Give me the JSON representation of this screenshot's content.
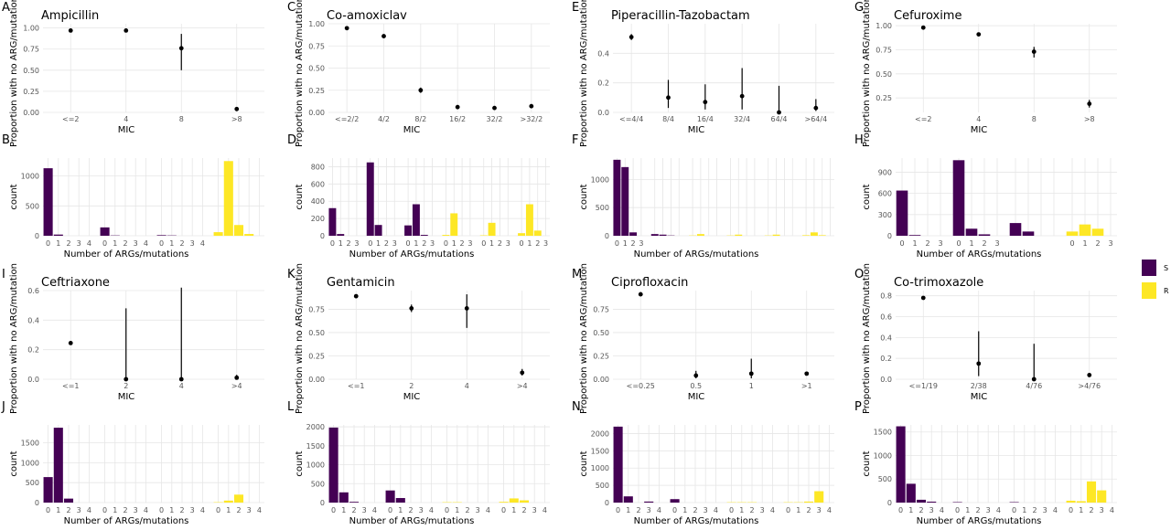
{
  "colors": {
    "S": "#440154",
    "R": "#FDE725",
    "grid": "#E6E6E6"
  },
  "legend": {
    "items": [
      {
        "key": "S",
        "color": "#440154"
      },
      {
        "key": "R",
        "color": "#FDE725"
      }
    ]
  },
  "chart_data": [
    {
      "letter": "A",
      "type": "scatter",
      "title": "Ampicillin",
      "xlabel": "MIC",
      "ylabel": "Proportion with no ARG/mutation",
      "categories": [
        "<=2",
        "4",
        "8",
        ">8"
      ],
      "values": [
        0.97,
        0.97,
        0.76,
        0.04
      ],
      "err_low": [
        0.96,
        0.95,
        0.5,
        0.03
      ],
      "err_high": [
        0.98,
        0.99,
        0.93,
        0.05
      ],
      "ylim": [
        0,
        1.05
      ],
      "yticks": [
        0,
        0.25,
        0.5,
        0.75,
        1.0
      ],
      "ytick_labels": [
        "0.00",
        "0.25",
        "0.50",
        "0.75",
        "1.00"
      ]
    },
    {
      "letter": "C",
      "type": "scatter",
      "title": "Co-amoxiclav",
      "xlabel": "MIC",
      "ylabel": "Proportion with no ARG/mutation",
      "categories": [
        "<=2/2",
        "4/2",
        "8/2",
        "16/2",
        "32/2",
        ">32/2"
      ],
      "values": [
        0.95,
        0.86,
        0.25,
        0.06,
        0.05,
        0.07
      ],
      "err_low": [
        0.94,
        0.84,
        0.22,
        0.04,
        0.03,
        0.05
      ],
      "err_high": [
        0.96,
        0.88,
        0.28,
        0.08,
        0.07,
        0.09
      ],
      "ylim": [
        0,
        1.0
      ],
      "yticks": [
        0,
        0.25,
        0.5,
        0.75,
        1.0
      ],
      "ytick_labels": [
        "0.00",
        "0.25",
        "0.50",
        "0.75",
        "1.00"
      ]
    },
    {
      "letter": "E",
      "type": "scatter",
      "title": "Piperacillin-Tazobactam",
      "xlabel": "MIC",
      "ylabel": "Proportion with no ARG/mutation",
      "categories": [
        "<=4/4",
        "8/4",
        "16/4",
        "32/4",
        "64/4",
        ">64/4"
      ],
      "values": [
        0.51,
        0.1,
        0.07,
        0.11,
        0.0,
        0.03
      ],
      "err_low": [
        0.49,
        0.03,
        0.02,
        0.02,
        0.0,
        0.01
      ],
      "err_high": [
        0.53,
        0.22,
        0.19,
        0.3,
        0.18,
        0.09
      ],
      "ylim": [
        0,
        0.6
      ],
      "yticks": [
        0,
        0.2,
        0.4
      ],
      "ytick_labels": [
        "0.0",
        "0.2",
        "0.4"
      ]
    },
    {
      "letter": "G",
      "type": "scatter",
      "title": "Cefuroxime",
      "xlabel": "MIC",
      "ylabel": "Proportion with no ARG/mutation",
      "categories": [
        "<=2",
        "4",
        "8",
        ">8"
      ],
      "values": [
        0.98,
        0.91,
        0.73,
        0.19
      ],
      "err_low": [
        0.97,
        0.89,
        0.67,
        0.15
      ],
      "err_high": [
        0.99,
        0.93,
        0.78,
        0.23
      ],
      "ylim": [
        0.1,
        1.02
      ],
      "yticks": [
        0.25,
        0.5,
        0.75,
        1.0
      ],
      "ytick_labels": [
        "0.25",
        "0.50",
        "0.75",
        "1.00"
      ]
    },
    {
      "letter": "B",
      "type": "bar",
      "xlabel": "Number of ARGs/mutations",
      "ylabel": "count",
      "ylim": [
        0,
        1300
      ],
      "yticks": [
        0,
        500,
        1000
      ],
      "ytick_labels": [
        "0",
        "500",
        "1000"
      ],
      "panels": [
        {
          "cls": "S",
          "values": [
            1130,
            20,
            0,
            0,
            0
          ]
        },
        {
          "cls": "S",
          "values": [
            140,
            5,
            0,
            0,
            0
          ]
        },
        {
          "cls": "S",
          "values": [
            10,
            5,
            0,
            0,
            0
          ]
        },
        {
          "cls": "R",
          "values": [
            60,
            1250,
            180,
            30,
            0
          ]
        }
      ],
      "xtick_labels": [
        "0",
        "1",
        "2",
        "3",
        "4"
      ],
      "xtick_panels": [
        0,
        1,
        2
      ]
    },
    {
      "letter": "D",
      "type": "bar",
      "xlabel": "Number of ARGs/mutations",
      "ylabel": "count",
      "ylim": [
        0,
        900
      ],
      "yticks": [
        0,
        200,
        400,
        600,
        800
      ],
      "ytick_labels": [
        "0",
        "200",
        "400",
        "600",
        "800"
      ],
      "panels": [
        {
          "cls": "S",
          "values": [
            320,
            20,
            0,
            0
          ]
        },
        {
          "cls": "S",
          "values": [
            850,
            125,
            0,
            0
          ]
        },
        {
          "cls": "S",
          "values": [
            120,
            365,
            10,
            0
          ]
        },
        {
          "cls": "R",
          "values": [
            10,
            260,
            0,
            0
          ]
        },
        {
          "cls": "R",
          "values": [
            5,
            150,
            0,
            0
          ]
        },
        {
          "cls": "R",
          "values": [
            30,
            365,
            60,
            0
          ]
        }
      ],
      "xtick_labels": [
        "0",
        "1",
        "2",
        "3"
      ],
      "xtick_panels": [
        0,
        1,
        2,
        3,
        4,
        5
      ]
    },
    {
      "letter": "F",
      "type": "bar",
      "xlabel": "Number of ARGs/mutations",
      "ylabel": "count",
      "ylim": [
        0,
        1380
      ],
      "yticks": [
        0,
        500,
        1000
      ],
      "ytick_labels": [
        "0",
        "500",
        "1000"
      ],
      "panels": [
        {
          "cls": "S",
          "values": [
            1350,
            1220,
            60,
            0
          ]
        },
        {
          "cls": "S",
          "values": [
            30,
            20,
            5,
            0
          ]
        },
        {
          "cls": "R",
          "values": [
            5,
            30,
            0,
            0
          ]
        },
        {
          "cls": "R",
          "values": [
            5,
            20,
            0,
            0
          ]
        },
        {
          "cls": "R",
          "values": [
            5,
            20,
            0,
            0
          ]
        },
        {
          "cls": "R",
          "values": [
            10,
            60,
            10,
            0
          ]
        }
      ],
      "xtick_labels": [
        "0",
        "1",
        "2",
        "3"
      ],
      "xtick_panels": [
        0
      ]
    },
    {
      "letter": "H",
      "type": "bar",
      "xlabel": "Number of ARGs/mutations",
      "ylabel": "count",
      "ylim": [
        0,
        1100
      ],
      "yticks": [
        0,
        300,
        600,
        900
      ],
      "ytick_labels": [
        "0",
        "300",
        "600",
        "900"
      ],
      "panels": [
        {
          "cls": "S",
          "values": [
            640,
            10,
            0,
            0
          ]
        },
        {
          "cls": "S",
          "values": [
            1070,
            100,
            20,
            0
          ]
        },
        {
          "cls": "S",
          "values": [
            180,
            60,
            0,
            0
          ]
        },
        {
          "cls": "R",
          "values": [
            60,
            160,
            100,
            0
          ]
        }
      ],
      "xtick_labels": [
        "0",
        "1",
        "2",
        "3"
      ],
      "xtick_panels": [
        0,
        1,
        3
      ]
    },
    {
      "letter": "I",
      "type": "scatter",
      "title": "Ceftriaxone",
      "xlabel": "MIC",
      "ylabel": "Proportion with no ARG/mutation",
      "categories": [
        "<=1",
        "2",
        "4",
        ">4"
      ],
      "values": [
        0.245,
        0.0,
        0.0,
        0.01
      ],
      "err_low": [
        0.235,
        0.0,
        0.0,
        0.0
      ],
      "err_high": [
        0.255,
        0.48,
        0.62,
        0.03
      ],
      "ylim": [
        0,
        0.6
      ],
      "yticks": [
        0,
        0.2,
        0.4,
        0.6
      ],
      "ytick_labels": [
        "0.0",
        "0.2",
        "0.4",
        "0.6"
      ]
    },
    {
      "letter": "K",
      "type": "scatter",
      "title": "Gentamicin",
      "xlabel": "MIC",
      "ylabel": "Proportion with no ARG/mutation",
      "categories": [
        "<=1",
        "2",
        "4",
        ">4"
      ],
      "values": [
        0.89,
        0.76,
        0.76,
        0.07
      ],
      "err_low": [
        0.88,
        0.72,
        0.55,
        0.04
      ],
      "err_high": [
        0.9,
        0.8,
        0.91,
        0.11
      ],
      "ylim": [
        0,
        0.95
      ],
      "yticks": [
        0,
        0.25,
        0.5,
        0.75
      ],
      "ytick_labels": [
        "0.00",
        "0.25",
        "0.50",
        "0.75"
      ]
    },
    {
      "letter": "M",
      "type": "scatter",
      "title": "Ciprofloxacin",
      "xlabel": "MIC",
      "ylabel": "Proportion with no ARG/mutation",
      "categories": [
        "<=0.25",
        "0.5",
        "1",
        ">1"
      ],
      "values": [
        0.91,
        0.04,
        0.06,
        0.06
      ],
      "err_low": [
        0.9,
        0.01,
        0.01,
        0.05
      ],
      "err_high": [
        0.92,
        0.09,
        0.22,
        0.07
      ],
      "ylim": [
        0,
        0.95
      ],
      "yticks": [
        0,
        0.25,
        0.5,
        0.75
      ],
      "ytick_labels": [
        "0.00",
        "0.25",
        "0.50",
        "0.75"
      ]
    },
    {
      "letter": "O",
      "type": "scatter",
      "title": "Co-trimoxazole",
      "xlabel": "MIC",
      "ylabel": "Proportion with no ARG/mutation",
      "categories": [
        "<=1/19",
        "2/38",
        "4/76",
        ">4/76"
      ],
      "values": [
        0.78,
        0.15,
        0.0,
        0.04
      ],
      "err_low": [
        0.77,
        0.03,
        0.0,
        0.03
      ],
      "err_high": [
        0.79,
        0.46,
        0.34,
        0.05
      ],
      "ylim": [
        0,
        0.85
      ],
      "yticks": [
        0,
        0.2,
        0.4,
        0.6,
        0.8
      ],
      "ytick_labels": [
        "0.0",
        "0.2",
        "0.4",
        "0.6",
        "0.8"
      ]
    },
    {
      "letter": "J",
      "type": "bar",
      "xlabel": "Number of ARGs/mutations",
      "ylabel": "count",
      "ylim": [
        0,
        1950
      ],
      "yticks": [
        0,
        500,
        1000,
        1500
      ],
      "ytick_labels": [
        "0",
        "500",
        "1000",
        "1500"
      ],
      "panels": [
        {
          "cls": "S",
          "values": [
            640,
            1880,
            100,
            0,
            0
          ]
        },
        {
          "cls": "S",
          "values": [
            0,
            0,
            0,
            0,
            0
          ]
        },
        {
          "cls": "S",
          "values": [
            0,
            0,
            0,
            0,
            0
          ]
        },
        {
          "cls": "R",
          "values": [
            10,
            50,
            200,
            0,
            0
          ]
        }
      ],
      "xtick_labels": [
        "0",
        "1",
        "2",
        "3",
        "4"
      ],
      "xtick_panels": [
        0,
        1,
        2,
        3
      ]
    },
    {
      "letter": "L",
      "type": "bar",
      "xlabel": "Number of ARGs/mutations",
      "ylabel": "count",
      "ylim": [
        0,
        2050
      ],
      "yticks": [
        0,
        500,
        1000,
        1500,
        2000
      ],
      "ytick_labels": [
        "0",
        "500",
        "1000",
        "1500",
        "2000"
      ],
      "panels": [
        {
          "cls": "S",
          "values": [
            1980,
            270,
            20,
            0,
            0
          ]
        },
        {
          "cls": "S",
          "values": [
            320,
            120,
            0,
            0,
            0
          ]
        },
        {
          "cls": "R",
          "values": [
            10,
            10,
            0,
            0,
            0
          ]
        },
        {
          "cls": "R",
          "values": [
            20,
            110,
            60,
            0,
            0
          ]
        }
      ],
      "xtick_labels": [
        "0",
        "1",
        "2",
        "3",
        "4"
      ],
      "xtick_panels": [
        0,
        1,
        2,
        3
      ]
    },
    {
      "letter": "N",
      "type": "bar",
      "xlabel": "Number of ARGs/mutations",
      "ylabel": "count",
      "ylim": [
        0,
        2250
      ],
      "yticks": [
        0,
        500,
        1000,
        1500,
        2000
      ],
      "ytick_labels": [
        "0",
        "500",
        "1000",
        "1500",
        "2000"
      ],
      "panels": [
        {
          "cls": "S",
          "values": [
            2200,
            180,
            0,
            30,
            0
          ]
        },
        {
          "cls": "S",
          "values": [
            100,
            0,
            0,
            0,
            0
          ]
        },
        {
          "cls": "R",
          "values": [
            10,
            10,
            10,
            0,
            0
          ]
        },
        {
          "cls": "R",
          "values": [
            10,
            10,
            30,
            330,
            0
          ]
        }
      ],
      "xtick_labels": [
        "0",
        "1",
        "2",
        "3",
        "4"
      ],
      "xtick_panels": [
        0,
        1,
        2,
        3
      ]
    },
    {
      "letter": "P",
      "type": "bar",
      "xlabel": "Number of ARGs/mutations",
      "ylabel": "count",
      "ylim": [
        0,
        1650
      ],
      "yticks": [
        0,
        500,
        1000,
        1500
      ],
      "ytick_labels": [
        "0",
        "500",
        "1000",
        "1500"
      ],
      "panels": [
        {
          "cls": "S",
          "values": [
            1620,
            400,
            60,
            20,
            0
          ]
        },
        {
          "cls": "S",
          "values": [
            10,
            0,
            0,
            0,
            0
          ]
        },
        {
          "cls": "S",
          "values": [
            10,
            0,
            0,
            0,
            0
          ]
        },
        {
          "cls": "R",
          "values": [
            40,
            30,
            450,
            260,
            0
          ]
        }
      ],
      "xtick_labels": [
        "0",
        "1",
        "2",
        "3",
        "4"
      ],
      "xtick_panels": [
        0,
        1,
        2,
        3
      ]
    }
  ]
}
